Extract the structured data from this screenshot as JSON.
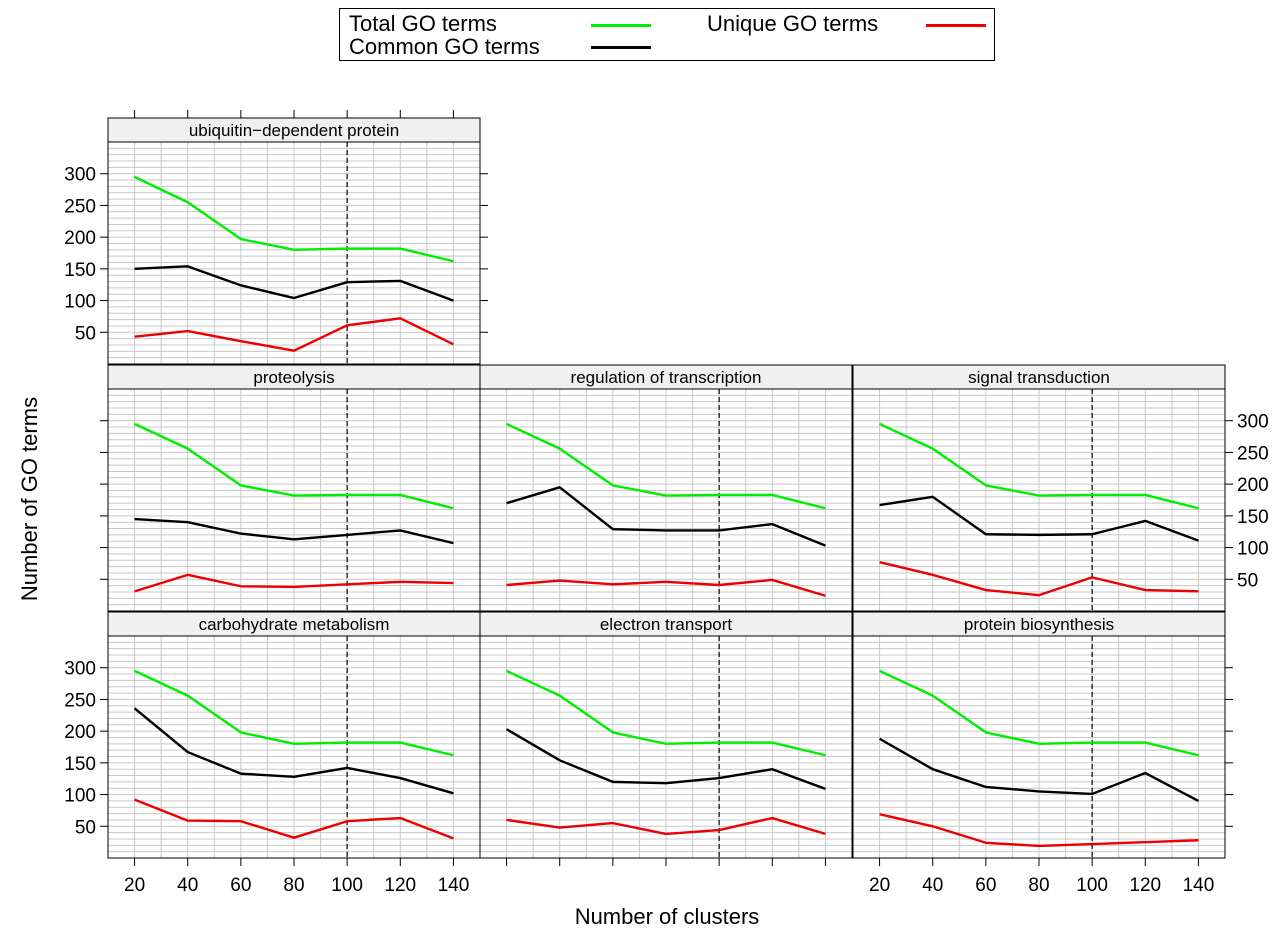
{
  "chart_data": {
    "type": "line",
    "xlabel": "Number of clusters",
    "ylabel": "Number of GO terms",
    "x": [
      20,
      40,
      60,
      80,
      100,
      120,
      140
    ],
    "xticks": [
      "20",
      "40",
      "60",
      "80",
      "100",
      "120",
      "140"
    ],
    "yticks": [
      "50",
      "100",
      "150",
      "200",
      "250",
      "300"
    ],
    "xlim": [
      10,
      150
    ],
    "ylim": [
      0,
      350
    ],
    "reference_line_x": 100,
    "grid": true,
    "legend": {
      "position": "top",
      "entries": [
        {
          "name": "Total GO terms",
          "color": "#00ee00"
        },
        {
          "name": "Unique GO terms",
          "color": "#ee0000"
        },
        {
          "name": "Common GO terms",
          "color": "#000000"
        }
      ]
    },
    "panels": [
      {
        "title": "ubiquitin−dependent protein",
        "series": [
          {
            "name": "Total GO terms",
            "values": [
              295,
              255,
              197,
              180,
              182,
              182,
              162
            ]
          },
          {
            "name": "Common GO terms",
            "values": [
              150,
              154,
              124,
              104,
              129,
              131,
              100
            ]
          },
          {
            "name": "Unique GO terms",
            "values": [
              43,
              52,
              36,
              21,
              61,
              72,
              31
            ]
          }
        ]
      },
      {
        "title": "proteolysis",
        "series": [
          {
            "name": "Total GO terms",
            "values": [
              295,
              256,
              198,
              182,
              183,
              183,
              162
            ]
          },
          {
            "name": "Common GO terms",
            "values": [
              145,
              140,
              122,
              113,
              120,
              127,
              107
            ]
          },
          {
            "name": "Unique GO terms",
            "values": [
              31,
              57,
              39,
              38,
              42,
              46,
              44
            ]
          }
        ]
      },
      {
        "title": "regulation of transcription",
        "series": [
          {
            "name": "Total GO terms",
            "values": [
              295,
              256,
              198,
              182,
              183,
              183,
              162
            ]
          },
          {
            "name": "Common GO terms",
            "values": [
              170,
              195,
              129,
              127,
              127,
              137,
              103
            ]
          },
          {
            "name": "Unique GO terms",
            "values": [
              41,
              48,
              42,
              46,
              41,
              49,
              24
            ]
          }
        ]
      },
      {
        "title": "signal transduction",
        "series": [
          {
            "name": "Total GO terms",
            "values": [
              295,
              256,
              198,
              182,
              183,
              183,
              162
            ]
          },
          {
            "name": "Common GO terms",
            "values": [
              167,
              180,
              121,
              120,
              121,
              142,
              111
            ]
          },
          {
            "name": "Unique GO terms",
            "values": [
              77,
              57,
              33,
              25,
              53,
              33,
              31
            ]
          }
        ]
      },
      {
        "title": "carbohydrate metabolism",
        "series": [
          {
            "name": "Total GO terms",
            "values": [
              295,
              256,
              198,
              180,
              182,
              182,
              162
            ]
          },
          {
            "name": "Common GO terms",
            "values": [
              236,
              167,
              133,
              128,
              142,
              126,
              102
            ]
          },
          {
            "name": "Unique GO terms",
            "values": [
              92,
              59,
              58,
              32,
              58,
              63,
              31
            ]
          }
        ]
      },
      {
        "title": "electron transport",
        "series": [
          {
            "name": "Total GO terms",
            "values": [
              295,
              256,
              198,
              180,
              182,
              182,
              162
            ]
          },
          {
            "name": "Common GO terms",
            "values": [
              203,
              154,
              120,
              118,
              126,
              140,
              109
            ]
          },
          {
            "name": "Unique GO terms",
            "values": [
              60,
              48,
              55,
              38,
              44,
              63,
              38
            ]
          }
        ]
      },
      {
        "title": "protein biosynthesis",
        "series": [
          {
            "name": "Total GO terms",
            "values": [
              295,
              256,
              198,
              180,
              182,
              182,
              162
            ]
          },
          {
            "name": "Common GO terms",
            "values": [
              188,
              140,
              112,
              105,
              101,
              134,
              90
            ]
          },
          {
            "name": "Unique GO terms",
            "values": [
              69,
              50,
              24,
              19,
              22,
              25,
              28
            ]
          }
        ]
      }
    ]
  }
}
